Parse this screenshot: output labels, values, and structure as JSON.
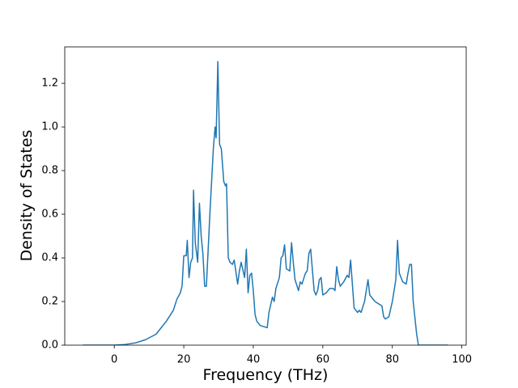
{
  "chart_data": {
    "type": "line",
    "xlabel": "Frequency (THz)",
    "ylabel": "Density of States",
    "x": [
      -9,
      0,
      3,
      6,
      9,
      12,
      13,
      15,
      17,
      18,
      19,
      19.5,
      20,
      20.7,
      21,
      21.5,
      22,
      22.5,
      22.8,
      23.3,
      24,
      24.5,
      25,
      25.5,
      26,
      26.5,
      27.5,
      28.5,
      29,
      29.3,
      29.8,
      30.3,
      30.8,
      31.5,
      32,
      32.3,
      32.8,
      33.3,
      34,
      34.5,
      35.5,
      36,
      36.5,
      37.5,
      38,
      38.5,
      39,
      39.5,
      40,
      40.5,
      41,
      42,
      44,
      44.5,
      45.5,
      46,
      46.5,
      47.5,
      48,
      48.5,
      49,
      49.5,
      50.5,
      51,
      51.5,
      52,
      53,
      53.5,
      54,
      55,
      55.5,
      56,
      56.5,
      57.5,
      58,
      58.5,
      59,
      59.5,
      60,
      61,
      62,
      63,
      63.5,
      64,
      64.5,
      65,
      66,
      67,
      67.5,
      68,
      68.5,
      69,
      70,
      70.5,
      71,
      72,
      73,
      73.5,
      74,
      75,
      76,
      77,
      77.5,
      78,
      79,
      80,
      81,
      81.5,
      82,
      83,
      84,
      84.5,
      85,
      85.5,
      86,
      87,
      87.5,
      96
    ],
    "series": [
      {
        "color": "#1f77b4",
        "values": [
          0,
          0,
          0.003,
          0.01,
          0.025,
          0.05,
          0.07,
          0.11,
          0.16,
          0.21,
          0.24,
          0.27,
          0.41,
          0.41,
          0.48,
          0.31,
          0.38,
          0.4,
          0.71,
          0.47,
          0.38,
          0.65,
          0.5,
          0.42,
          0.27,
          0.27,
          0.6,
          0.9,
          1.0,
          0.95,
          1.3,
          0.92,
          0.9,
          0.75,
          0.73,
          0.74,
          0.4,
          0.38,
          0.37,
          0.39,
          0.28,
          0.34,
          0.38,
          0.31,
          0.44,
          0.24,
          0.32,
          0.33,
          0.25,
          0.14,
          0.11,
          0.09,
          0.08,
          0.15,
          0.22,
          0.2,
          0.26,
          0.31,
          0.4,
          0.41,
          0.46,
          0.35,
          0.34,
          0.47,
          0.38,
          0.3,
          0.25,
          0.29,
          0.28,
          0.33,
          0.34,
          0.42,
          0.44,
          0.25,
          0.23,
          0.25,
          0.3,
          0.31,
          0.23,
          0.24,
          0.26,
          0.26,
          0.25,
          0.36,
          0.3,
          0.27,
          0.29,
          0.32,
          0.31,
          0.39,
          0.28,
          0.17,
          0.15,
          0.16,
          0.15,
          0.2,
          0.3,
          0.23,
          0.22,
          0.2,
          0.19,
          0.18,
          0.13,
          0.12,
          0.13,
          0.2,
          0.3,
          0.48,
          0.33,
          0.29,
          0.28,
          0.33,
          0.37,
          0.37,
          0.2,
          0.05,
          0,
          0
        ]
      }
    ],
    "xlim": [
      -14.25,
      101.25
    ],
    "xticks": [
      0,
      20,
      40,
      60,
      80,
      100
    ],
    "ylim": [
      0,
      1.367
    ],
    "yticks": [
      {
        "value": 0,
        "label": "0.0"
      },
      0.2,
      0.4,
      0.6,
      0.8,
      {
        "value": 1,
        "label": "1.0"
      },
      1.2
    ]
  }
}
